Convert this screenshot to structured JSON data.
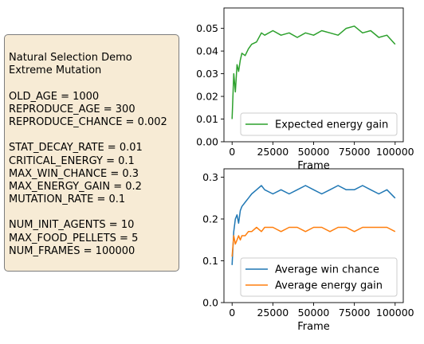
{
  "params": {
    "title_lines": [
      "Natural Selection Demo",
      "Extreme Mutation"
    ],
    "groups": [
      [
        "OLD_AGE = 1000",
        "REPRODUCE_AGE = 300",
        "REPRODUCE_CHANCE = 0.002"
      ],
      [
        "STAT_DECAY_RATE = 0.01",
        "CRITICAL_ENERGY = 0.1",
        "MAX_WIN_CHANCE = 0.3",
        "MAX_ENERGY_GAIN = 0.2",
        "MUTATION_RATE = 0.1"
      ],
      [
        "NUM_INIT_AGENTS = 10",
        "MAX_FOOD_PELLETS = 5",
        "NUM_FRAMES = 100000"
      ]
    ]
  },
  "chart_data": [
    {
      "type": "line",
      "xlabel": "Frame",
      "ylabel": "",
      "xlim": [
        -5000,
        105000
      ],
      "ylim": [
        0,
        0.059
      ],
      "xticks": [
        0,
        25000,
        50000,
        75000,
        100000
      ],
      "xtick_labels": [
        "0",
        "25000",
        "50000",
        "75000",
        "100000"
      ],
      "yticks": [
        0,
        0.01,
        0.02,
        0.03,
        0.04,
        0.05
      ],
      "ytick_labels": [
        "0.00",
        "0.01",
        "0.02",
        "0.03",
        "0.04",
        "0.05"
      ],
      "legend": "lower right",
      "series": [
        {
          "name": "Expected energy gain",
          "color": "#2ca02c",
          "x": [
            0,
            1000,
            2000,
            3000,
            4000,
            5000,
            6000,
            8000,
            10000,
            12000,
            15000,
            18000,
            20000,
            25000,
            30000,
            35000,
            40000,
            45000,
            50000,
            55000,
            60000,
            65000,
            70000,
            75000,
            80000,
            85000,
            90000,
            95000,
            100000
          ],
          "y": [
            0.01,
            0.03,
            0.022,
            0.034,
            0.031,
            0.036,
            0.039,
            0.038,
            0.041,
            0.043,
            0.044,
            0.048,
            0.047,
            0.049,
            0.047,
            0.048,
            0.046,
            0.048,
            0.047,
            0.049,
            0.048,
            0.047,
            0.05,
            0.051,
            0.048,
            0.049,
            0.046,
            0.047,
            0.043
          ]
        }
      ]
    },
    {
      "type": "line",
      "xlabel": "Frame",
      "ylabel": "",
      "xlim": [
        -5000,
        105000
      ],
      "ylim": [
        0,
        0.32
      ],
      "xticks": [
        0,
        25000,
        50000,
        75000,
        100000
      ],
      "xtick_labels": [
        "0",
        "25000",
        "50000",
        "75000",
        "100000"
      ],
      "yticks": [
        0,
        0.1,
        0.2,
        0.3
      ],
      "ytick_labels": [
        "0.0",
        "0.1",
        "0.2",
        "0.3"
      ],
      "legend": "lower right",
      "series": [
        {
          "name": "Average win chance",
          "color": "#1f77b4",
          "x": [
            0,
            1000,
            2000,
            3000,
            4000,
            5000,
            6000,
            8000,
            10000,
            12000,
            15000,
            18000,
            20000,
            25000,
            30000,
            35000,
            40000,
            45000,
            50000,
            55000,
            60000,
            65000,
            70000,
            75000,
            80000,
            85000,
            90000,
            95000,
            100000
          ],
          "y": [
            0.09,
            0.17,
            0.2,
            0.21,
            0.19,
            0.22,
            0.23,
            0.24,
            0.25,
            0.26,
            0.27,
            0.28,
            0.27,
            0.26,
            0.27,
            0.26,
            0.27,
            0.28,
            0.27,
            0.26,
            0.27,
            0.28,
            0.27,
            0.27,
            0.28,
            0.27,
            0.26,
            0.27,
            0.25
          ]
        },
        {
          "name": "Average energy gain",
          "color": "#ff7f0e",
          "x": [
            0,
            1000,
            2000,
            3000,
            4000,
            5000,
            6000,
            8000,
            10000,
            12000,
            15000,
            18000,
            20000,
            25000,
            30000,
            35000,
            40000,
            45000,
            50000,
            55000,
            60000,
            65000,
            70000,
            75000,
            80000,
            85000,
            90000,
            95000,
            100000
          ],
          "y": [
            0.11,
            0.16,
            0.14,
            0.15,
            0.16,
            0.15,
            0.16,
            0.16,
            0.17,
            0.17,
            0.18,
            0.17,
            0.18,
            0.18,
            0.17,
            0.18,
            0.18,
            0.17,
            0.18,
            0.18,
            0.17,
            0.18,
            0.18,
            0.17,
            0.18,
            0.18,
            0.18,
            0.18,
            0.17
          ]
        }
      ]
    }
  ]
}
